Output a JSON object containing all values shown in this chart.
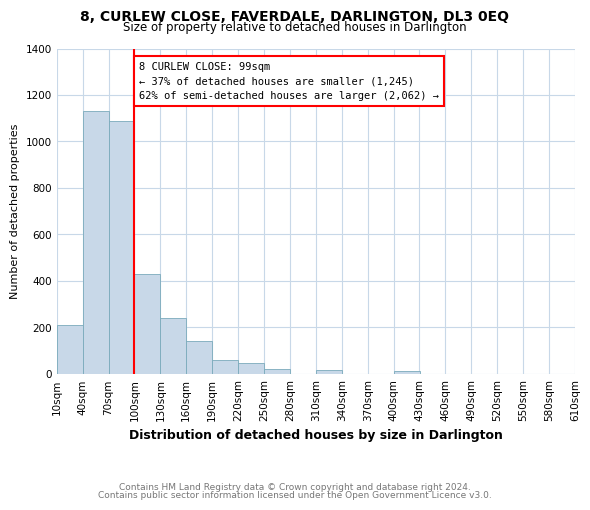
{
  "title": "8, CURLEW CLOSE, FAVERDALE, DARLINGTON, DL3 0EQ",
  "subtitle": "Size of property relative to detached houses in Darlington",
  "xlabel": "Distribution of detached houses by size in Darlington",
  "ylabel": "Number of detached properties",
  "bar_color": "#c8d8e8",
  "bar_edge_color": "#7aaabb",
  "bin_edges": [
    10,
    40,
    70,
    100,
    130,
    160,
    190,
    220,
    250,
    280,
    310,
    340,
    370,
    400,
    430,
    460,
    490,
    520,
    550,
    580,
    610
  ],
  "bin_labels": [
    "10sqm",
    "40sqm",
    "70sqm",
    "100sqm",
    "130sqm",
    "160sqm",
    "190sqm",
    "220sqm",
    "250sqm",
    "280sqm",
    "310sqm",
    "340sqm",
    "370sqm",
    "400sqm",
    "430sqm",
    "460sqm",
    "490sqm",
    "520sqm",
    "550sqm",
    "580sqm",
    "610sqm"
  ],
  "counts": [
    210,
    1130,
    1090,
    430,
    240,
    140,
    60,
    45,
    20,
    0,
    15,
    0,
    0,
    10,
    0,
    0,
    0,
    0,
    0,
    0
  ],
  "vline_x": 99,
  "annotation_text": "8 CURLEW CLOSE: 99sqm\n← 37% of detached houses are smaller (1,245)\n62% of semi-detached houses are larger (2,062) →",
  "annotation_box_color": "white",
  "annotation_box_edge_color": "red",
  "vline_color": "red",
  "ylim": [
    0,
    1400
  ],
  "yticks": [
    0,
    200,
    400,
    600,
    800,
    1000,
    1200,
    1400
  ],
  "footnote1": "Contains HM Land Registry data © Crown copyright and database right 2024.",
  "footnote2": "Contains public sector information licensed under the Open Government Licence v3.0.",
  "grid_color": "#c8d8e8",
  "title_fontsize": 10,
  "subtitle_fontsize": 8.5,
  "ylabel_fontsize": 8,
  "xlabel_fontsize": 9,
  "tick_fontsize": 7.5,
  "footnote_fontsize": 6.5,
  "footnote_color": "#777777"
}
